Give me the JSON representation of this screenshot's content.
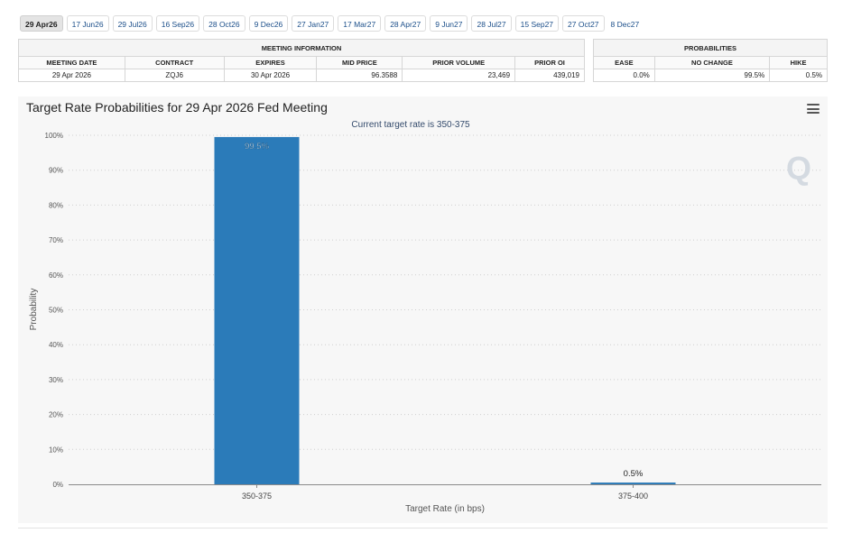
{
  "date_tabs": [
    {
      "label": "29 Apr26",
      "active": true
    },
    {
      "label": "17 Jun26",
      "active": false
    },
    {
      "label": "29 Jul26",
      "active": false
    },
    {
      "label": "16 Sep26",
      "active": false
    },
    {
      "label": "28 Oct26",
      "active": false
    },
    {
      "label": "9 Dec26",
      "active": false
    },
    {
      "label": "27 Jan27",
      "active": false
    },
    {
      "label": "17 Mar27",
      "active": false
    },
    {
      "label": "28 Apr27",
      "active": false
    },
    {
      "label": "9 Jun27",
      "active": false
    },
    {
      "label": "28 Jul27",
      "active": false
    },
    {
      "label": "15 Sep27",
      "active": false
    },
    {
      "label": "27 Oct27",
      "active": false
    },
    {
      "label": "8 Dec27",
      "active": false
    }
  ],
  "meeting_info": {
    "group_title": "MEETING INFORMATION",
    "headers": [
      "MEETING DATE",
      "CONTRACT",
      "EXPIRES",
      "MID PRICE",
      "PRIOR VOLUME",
      "PRIOR OI"
    ],
    "row": [
      "29 Apr 2026",
      "ZQJ6",
      "30 Apr 2026",
      "96.3588",
      "23,469",
      "439,019"
    ]
  },
  "probabilities": {
    "group_title": "PROBABILITIES",
    "headers": [
      "EASE",
      "NO CHANGE",
      "HIKE"
    ],
    "row": [
      "0.0%",
      "99.5%",
      "0.5%"
    ]
  },
  "chart_title": "Target Rate Probabilities for 29 Apr 2026 Fed Meeting",
  "menu_icon": "hamburger-menu-icon",
  "watermark_letter": "Q",
  "chart_data": {
    "type": "bar",
    "subtitle": "Current target rate is 350-375",
    "categories": [
      "350-375",
      "375-400"
    ],
    "values": [
      99.5,
      0.5
    ],
    "data_labels": [
      "99.5%",
      "0.5%"
    ],
    "xlabel": "Target Rate (in bps)",
    "ylabel": "Probability",
    "ylim": [
      0,
      100
    ],
    "yticks": [
      0,
      10,
      20,
      30,
      40,
      50,
      60,
      70,
      80,
      90,
      100
    ],
    "ytick_labels": [
      "0%",
      "10%",
      "20%",
      "30%",
      "40%",
      "50%",
      "60%",
      "70%",
      "80%",
      "90%",
      "100%"
    ],
    "grid": true,
    "bar_color": "#2b7bb9"
  }
}
